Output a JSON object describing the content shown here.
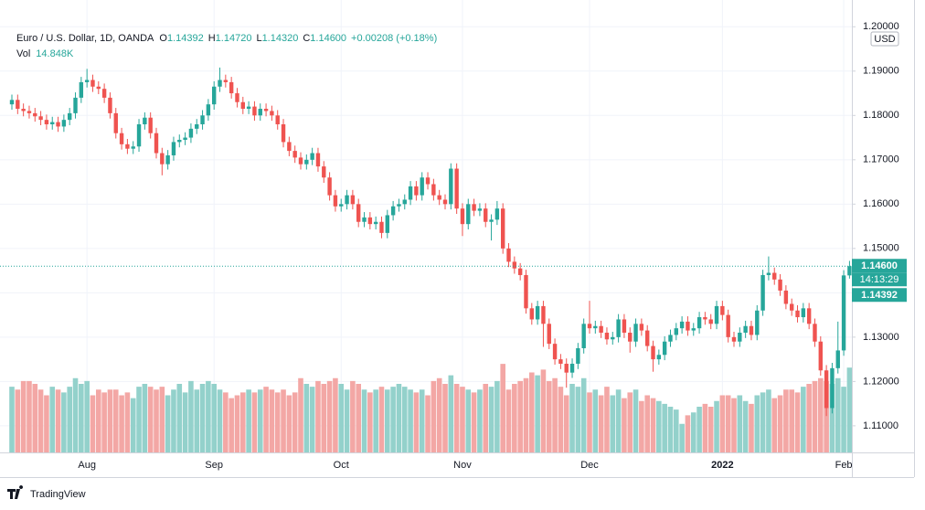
{
  "chart_data": {
    "type": "candlestick",
    "header": {
      "symbol": "Euro / U.S. Dollar, 1D, OANDA",
      "ohlc_keys": [
        "O",
        "H",
        "L",
        "C"
      ],
      "ohlc": [
        "1.14392",
        "1.14720",
        "1.14320",
        "1.14600"
      ],
      "change": "+0.00208 (+0.18%)",
      "vol_key": "Vol",
      "vol": "14.848K"
    },
    "currency": "USD",
    "brand": "TradingView",
    "up_color": "#26a69a",
    "down_color": "#ef5350",
    "volume_colors": {
      "up": "#93d1cb",
      "down": "#f3a7a5"
    },
    "ylim": [
      1.104,
      1.2015
    ],
    "yticks": [
      {
        "value": 1.11,
        "label": "1.11000"
      },
      {
        "value": 1.12,
        "label": "1.12000"
      },
      {
        "value": 1.13,
        "label": "1.13000"
      },
      {
        "value": 1.14,
        "label": "1.14000"
      },
      {
        "value": 1.15,
        "label": "1.15000"
      },
      {
        "value": 1.16,
        "label": "1.16000"
      },
      {
        "value": 1.17,
        "label": "1.17000"
      },
      {
        "value": 1.18,
        "label": "1.18000"
      },
      {
        "value": 1.19,
        "label": "1.19000"
      },
      {
        "value": 1.2,
        "label": "1.20000"
      }
    ],
    "vlim": [
      0,
      16
    ],
    "grid": true,
    "price_tags": [
      {
        "value": 1.146,
        "label": "1.14600"
      },
      {
        "label": "14:13:29"
      },
      {
        "value": 1.14392,
        "label": "1.14392"
      }
    ],
    "categories": [
      null,
      null,
      null,
      null,
      null,
      null,
      null,
      null,
      null,
      null,
      null,
      null,
      null,
      "Aug",
      null,
      null,
      null,
      null,
      null,
      null,
      null,
      null,
      null,
      null,
      null,
      null,
      null,
      null,
      null,
      null,
      null,
      null,
      null,
      null,
      null,
      "Sep",
      null,
      null,
      null,
      null,
      null,
      null,
      null,
      null,
      null,
      null,
      null,
      null,
      null,
      null,
      null,
      null,
      null,
      null,
      null,
      null,
      null,
      "Oct",
      null,
      null,
      null,
      null,
      null,
      null,
      null,
      null,
      null,
      null,
      null,
      null,
      null,
      null,
      null,
      null,
      null,
      null,
      null,
      null,
      "Nov",
      null,
      null,
      null,
      null,
      null,
      null,
      null,
      null,
      null,
      null,
      null,
      null,
      null,
      null,
      null,
      null,
      null,
      null,
      null,
      null,
      null,
      "Dec",
      null,
      null,
      null,
      null,
      null,
      null,
      null,
      null,
      null,
      null,
      null,
      null,
      null,
      null,
      null,
      null,
      null,
      null,
      null,
      null,
      null,
      null,
      "2022",
      null,
      null,
      null,
      null,
      null,
      null,
      null,
      null,
      null,
      null,
      null,
      null,
      null,
      null,
      null,
      null,
      null,
      null,
      null,
      null,
      "Feb",
      null
    ],
    "open": [
      1.1825,
      1.1835,
      1.1815,
      1.181,
      1.1805,
      1.1798,
      1.179,
      1.178,
      1.1785,
      1.1775,
      1.179,
      1.1805,
      1.184,
      1.1875,
      1.188,
      1.1865,
      1.186,
      1.184,
      1.1805,
      1.176,
      1.1735,
      1.1725,
      1.173,
      1.178,
      1.1795,
      1.176,
      1.1715,
      1.169,
      1.171,
      1.174,
      1.1745,
      1.175,
      1.177,
      1.178,
      1.18,
      1.1825,
      1.1865,
      1.188,
      1.1875,
      1.185,
      1.183,
      1.1815,
      1.182,
      1.18,
      1.1815,
      1.181,
      1.18,
      1.178,
      1.174,
      1.172,
      1.1705,
      1.169,
      1.17,
      1.1715,
      1.1685,
      1.166,
      1.162,
      1.1595,
      1.16,
      1.162,
      1.16,
      1.156,
      1.157,
      1.1555,
      1.156,
      1.1535,
      1.1575,
      1.1595,
      1.16,
      1.161,
      1.164,
      1.162,
      1.166,
      1.1645,
      1.162,
      1.161,
      1.16,
      1.168,
      1.159,
      1.1555,
      1.16,
      1.1585,
      1.159,
      1.156,
      1.1565,
      1.159,
      1.15,
      1.147,
      1.1455,
      1.144,
      1.1365,
      1.134,
      1.137,
      1.133,
      1.1285,
      1.125,
      1.124,
      1.122,
      1.124,
      1.1275,
      1.133,
      1.132,
      1.1325,
      1.131,
      1.1295,
      1.13,
      1.134,
      1.131,
      1.129,
      1.133,
      1.1315,
      1.128,
      1.125,
      1.126,
      1.129,
      1.1305,
      1.132,
      1.1335,
      1.1315,
      1.132,
      1.1345,
      1.134,
      1.133,
      1.137,
      1.135,
      1.13,
      1.129,
      1.131,
      1.1325,
      1.1305,
      1.136,
      1.144,
      1.1445,
      1.143,
      1.1405,
      1.1375,
      1.136,
      1.1345,
      1.1365,
      1.133,
      1.129,
      1.1225,
      1.114,
      1.123,
      1.127,
      1.14392
    ],
    "high": [
      1.1847,
      1.1847,
      1.1827,
      1.1822,
      1.1817,
      1.181,
      1.1802,
      1.1797,
      1.1797,
      1.1802,
      1.1817,
      1.1852,
      1.1887,
      1.1905,
      1.1892,
      1.1877,
      1.1872,
      1.1852,
      1.1817,
      1.1772,
      1.1747,
      1.1742,
      1.1792,
      1.1807,
      1.1807,
      1.1772,
      1.1727,
      1.1722,
      1.1752,
      1.1757,
      1.1762,
      1.1782,
      1.1792,
      1.1812,
      1.1837,
      1.1877,
      1.1908,
      1.1892,
      1.1887,
      1.1862,
      1.1842,
      1.1832,
      1.1832,
      1.1827,
      1.1827,
      1.1822,
      1.1812,
      1.1792,
      1.1752,
      1.1732,
      1.1717,
      1.1712,
      1.1727,
      1.1727,
      1.1697,
      1.1672,
      1.1632,
      1.1612,
      1.1632,
      1.1632,
      1.1612,
      1.1582,
      1.1582,
      1.1572,
      1.1572,
      1.1587,
      1.1607,
      1.1612,
      1.1622,
      1.1652,
      1.1652,
      1.1672,
      1.1672,
      1.1657,
      1.1632,
      1.1622,
      1.1692,
      1.1692,
      1.1602,
      1.1612,
      1.1612,
      1.1602,
      1.1602,
      1.1577,
      1.1607,
      1.1602,
      1.1512,
      1.1482,
      1.1467,
      1.1452,
      1.1377,
      1.1382,
      1.1382,
      1.1342,
      1.1297,
      1.1262,
      1.1252,
      1.1252,
      1.1287,
      1.1342,
      1.1382,
      1.1337,
      1.1337,
      1.1322,
      1.1312,
      1.1352,
      1.1352,
      1.1322,
      1.1342,
      1.1342,
      1.1327,
      1.1292,
      1.1272,
      1.1302,
      1.1317,
      1.1332,
      1.1347,
      1.1347,
      1.1332,
      1.1357,
      1.1357,
      1.1352,
      1.1382,
      1.1382,
      1.1362,
      1.1312,
      1.1322,
      1.1337,
      1.1337,
      1.1372,
      1.1452,
      1.1482,
      1.1457,
      1.1442,
      1.1417,
      1.1387,
      1.1372,
      1.1377,
      1.1377,
      1.1342,
      1.1302,
      1.1237,
      1.1242,
      1.1335,
      1.1451,
      1.1472
    ],
    "low": [
      1.1813,
      1.1803,
      1.1798,
      1.1793,
      1.1786,
      1.1778,
      1.1768,
      1.1768,
      1.1763,
      1.1763,
      1.1778,
      1.1793,
      1.1828,
      1.1863,
      1.1853,
      1.1848,
      1.1828,
      1.1793,
      1.1748,
      1.1723,
      1.1713,
      1.1713,
      1.1718,
      1.1768,
      1.1748,
      1.1703,
      1.1665,
      1.1678,
      1.1698,
      1.1728,
      1.1733,
      1.1738,
      1.1758,
      1.1768,
      1.1788,
      1.1813,
      1.1853,
      1.1863,
      1.1838,
      1.1818,
      1.1803,
      1.1803,
      1.1788,
      1.1788,
      1.1798,
      1.1788,
      1.1768,
      1.1728,
      1.1708,
      1.1693,
      1.1678,
      1.1678,
      1.1688,
      1.1673,
      1.1648,
      1.1608,
      1.1583,
      1.1583,
      1.1588,
      1.1588,
      1.1548,
      1.1548,
      1.1543,
      1.1543,
      1.1523,
      1.1523,
      1.1563,
      1.1583,
      1.1588,
      1.1598,
      1.1608,
      1.1608,
      1.1633,
      1.1608,
      1.1598,
      1.1588,
      1.1588,
      1.1578,
      1.1528,
      1.1543,
      1.1573,
      1.1573,
      1.1548,
      1.1518,
      1.1553,
      1.1488,
      1.1458,
      1.1443,
      1.1428,
      1.1353,
      1.1328,
      1.1328,
      1.1278,
      1.1273,
      1.1238,
      1.1228,
      1.1186,
      1.1208,
      1.1228,
      1.1263,
      1.1308,
      1.1308,
      1.1298,
      1.1283,
      1.1283,
      1.1288,
      1.1298,
      1.1265,
      1.1278,
      1.1303,
      1.1268,
      1.1222,
      1.1238,
      1.1248,
      1.1278,
      1.1293,
      1.1308,
      1.1303,
      1.1303,
      1.1308,
      1.1328,
      1.1318,
      1.1318,
      1.1338,
      1.1288,
      1.1278,
      1.1278,
      1.1298,
      1.1293,
      1.1293,
      1.1348,
      1.1428,
      1.1418,
      1.1393,
      1.1363,
      1.1348,
      1.1333,
      1.1333,
      1.1318,
      1.1278,
      1.1213,
      1.1122,
      1.1128,
      1.1218,
      1.1258,
      1.1432
    ],
    "close": [
      1.1835,
      1.1815,
      1.181,
      1.1805,
      1.1798,
      1.179,
      1.178,
      1.1785,
      1.1775,
      1.179,
      1.1805,
      1.184,
      1.1875,
      1.188,
      1.1865,
      1.186,
      1.184,
      1.1805,
      1.176,
      1.1735,
      1.1725,
      1.173,
      1.178,
      1.1795,
      1.176,
      1.1715,
      1.169,
      1.171,
      1.174,
      1.1745,
      1.175,
      1.177,
      1.178,
      1.18,
      1.1825,
      1.1865,
      1.188,
      1.1875,
      1.185,
      1.183,
      1.1815,
      1.182,
      1.18,
      1.1815,
      1.181,
      1.18,
      1.178,
      1.174,
      1.172,
      1.1705,
      1.169,
      1.17,
      1.1715,
      1.1685,
      1.166,
      1.162,
      1.1595,
      1.16,
      1.162,
      1.16,
      1.156,
      1.157,
      1.1555,
      1.156,
      1.1535,
      1.1575,
      1.1595,
      1.16,
      1.161,
      1.164,
      1.162,
      1.166,
      1.1645,
      1.162,
      1.161,
      1.16,
      1.168,
      1.159,
      1.1555,
      1.16,
      1.1585,
      1.159,
      1.156,
      1.1565,
      1.159,
      1.15,
      1.147,
      1.1455,
      1.144,
      1.1365,
      1.134,
      1.137,
      1.133,
      1.1285,
      1.125,
      1.124,
      1.122,
      1.124,
      1.1275,
      1.133,
      1.132,
      1.1325,
      1.131,
      1.1295,
      1.13,
      1.134,
      1.131,
      1.129,
      1.133,
      1.1315,
      1.128,
      1.125,
      1.126,
      1.129,
      1.1305,
      1.132,
      1.1335,
      1.1315,
      1.132,
      1.1345,
      1.134,
      1.133,
      1.137,
      1.135,
      1.13,
      1.129,
      1.131,
      1.1325,
      1.1305,
      1.136,
      1.144,
      1.1445,
      1.143,
      1.1405,
      1.1375,
      1.136,
      1.1345,
      1.1365,
      1.133,
      1.129,
      1.1225,
      1.114,
      1.123,
      1.127,
      1.14392,
      1.146
    ],
    "volume": [
      11.5,
      11,
      12.5,
      12.5,
      12,
      11,
      10,
      11.5,
      11,
      10.5,
      11.5,
      13,
      12,
      12.5,
      10,
      11,
      10.5,
      11,
      11,
      10,
      10.5,
      9.5,
      11.5,
      12,
      11.5,
      11,
      11.5,
      10,
      11,
      12,
      10.5,
      12.5,
      11,
      12,
      12.5,
      12,
      11,
      10.5,
      9.5,
      10,
      10.5,
      11,
      10.5,
      11,
      11.5,
      11,
      10.5,
      11,
      10,
      10.5,
      13,
      12,
      11.5,
      12.5,
      12,
      12.5,
      13,
      12,
      11,
      12.5,
      12,
      11,
      10.5,
      11,
      11.5,
      11,
      11.5,
      12,
      11.5,
      11,
      10.5,
      11,
      10,
      12.5,
      13,
      12,
      13.5,
      12,
      11.5,
      11,
      10.5,
      11,
      12,
      11.5,
      12.5,
      15.5,
      11,
      12,
      12.5,
      13,
      14,
      13.5,
      14.5,
      12.5,
      13,
      11.5,
      10,
      12,
      11.5,
      13,
      10.5,
      11,
      10,
      11.5,
      10,
      11,
      9.5,
      10.5,
      11,
      9,
      10,
      9.5,
      9,
      8.5,
      8,
      7.5,
      5,
      6.5,
      7,
      8,
      8.5,
      8,
      9,
      10,
      10,
      9.5,
      10,
      9,
      8.5,
      10,
      10.5,
      11,
      9.5,
      10,
      11,
      11,
      10.5,
      11.5,
      12,
      12.5,
      13,
      12.5,
      12,
      13,
      11.5,
      14.848
    ]
  }
}
